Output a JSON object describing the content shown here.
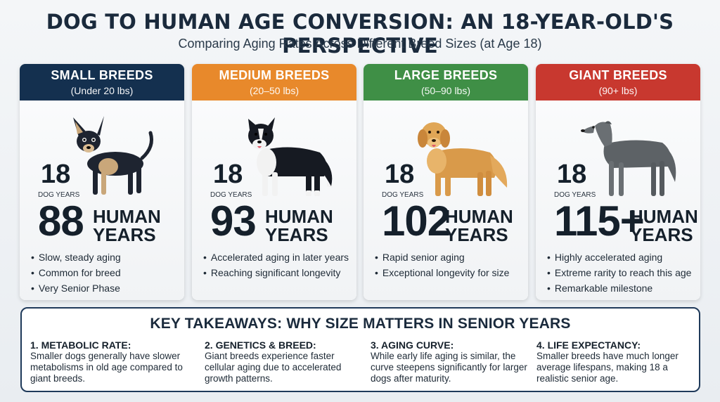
{
  "title": "DOG TO HUMAN AGE CONVERSION: AN 18-YEAR-OLD'S PERSPECTIVE",
  "subtitle": "Comparing Aging Rates Across Different Breed Sizes (at Age 18)",
  "colors": {
    "small": "#14304f",
    "medium": "#e8892b",
    "large": "#3f8f46",
    "giant": "#c8382f"
  },
  "cards": [
    {
      "name": "SMALL BREEDS",
      "range": "(Under 20 lbs)",
      "image": "chihuahua-illustration",
      "dog_years": "18",
      "dog_years_label": "DOG YEARS",
      "human_years": "88",
      "human_label_1": "HUMAN",
      "human_label_2": "YEARS",
      "bullets": [
        "Slow, steady aging",
        "Common for breed",
        "Very Senior Phase"
      ]
    },
    {
      "name": "MEDIUM BREEDS",
      "range": "(20–50 lbs)",
      "image": "border-collie-illustration",
      "dog_years": "18",
      "dog_years_label": "DOG YEARS",
      "human_years": "93",
      "human_label_1": "HUMAN",
      "human_label_2": "YEARS",
      "bullets": [
        "Accelerated aging in later years",
        "Reaching significant longevity"
      ]
    },
    {
      "name": "LARGE BREEDS",
      "range": "(50–90 lbs)",
      "image": "golden-retriever-illustration",
      "dog_years": "18",
      "dog_years_label": "DOG YEARS",
      "human_years": "102",
      "human_label_1": "HUMAN",
      "human_label_2": "YEARS",
      "bullets": [
        "Rapid senior aging",
        "Exceptional longevity for size"
      ]
    },
    {
      "name": "GIANT BREEDS",
      "range": "(90+ lbs)",
      "image": "irish-wolfhound-illustration",
      "dog_years": "18",
      "dog_years_label": "DOG YEARS",
      "human_years": "115+",
      "human_label_1": "HUMAN",
      "human_label_2": "YEARS",
      "bullets": [
        "Highly accelerated aging",
        "Extreme rarity to reach this age",
        "Remarkable milestone"
      ]
    }
  ],
  "takeaways": {
    "title": "KEY TAKEAWAYS: WHY SIZE MATTERS IN SENIOR YEARS",
    "items": [
      {
        "head": "1. METABOLIC RATE:",
        "text": "Smaller dogs generally have slower metabolisms in old age compared to giant breeds."
      },
      {
        "head": "2. GENETICS & BREED:",
        "text": "Giant breeds experience faster cellular aging due to accelerated growth patterns."
      },
      {
        "head": "3. AGING CURVE:",
        "text": "While early life aging is similar, the curve steepens significantly for larger dogs after maturity."
      },
      {
        "head": "4. LIFE EXPECTANCY:",
        "text": "Smaller breeds have much longer average lifespans, making 18 a realistic senior age."
      }
    ]
  }
}
